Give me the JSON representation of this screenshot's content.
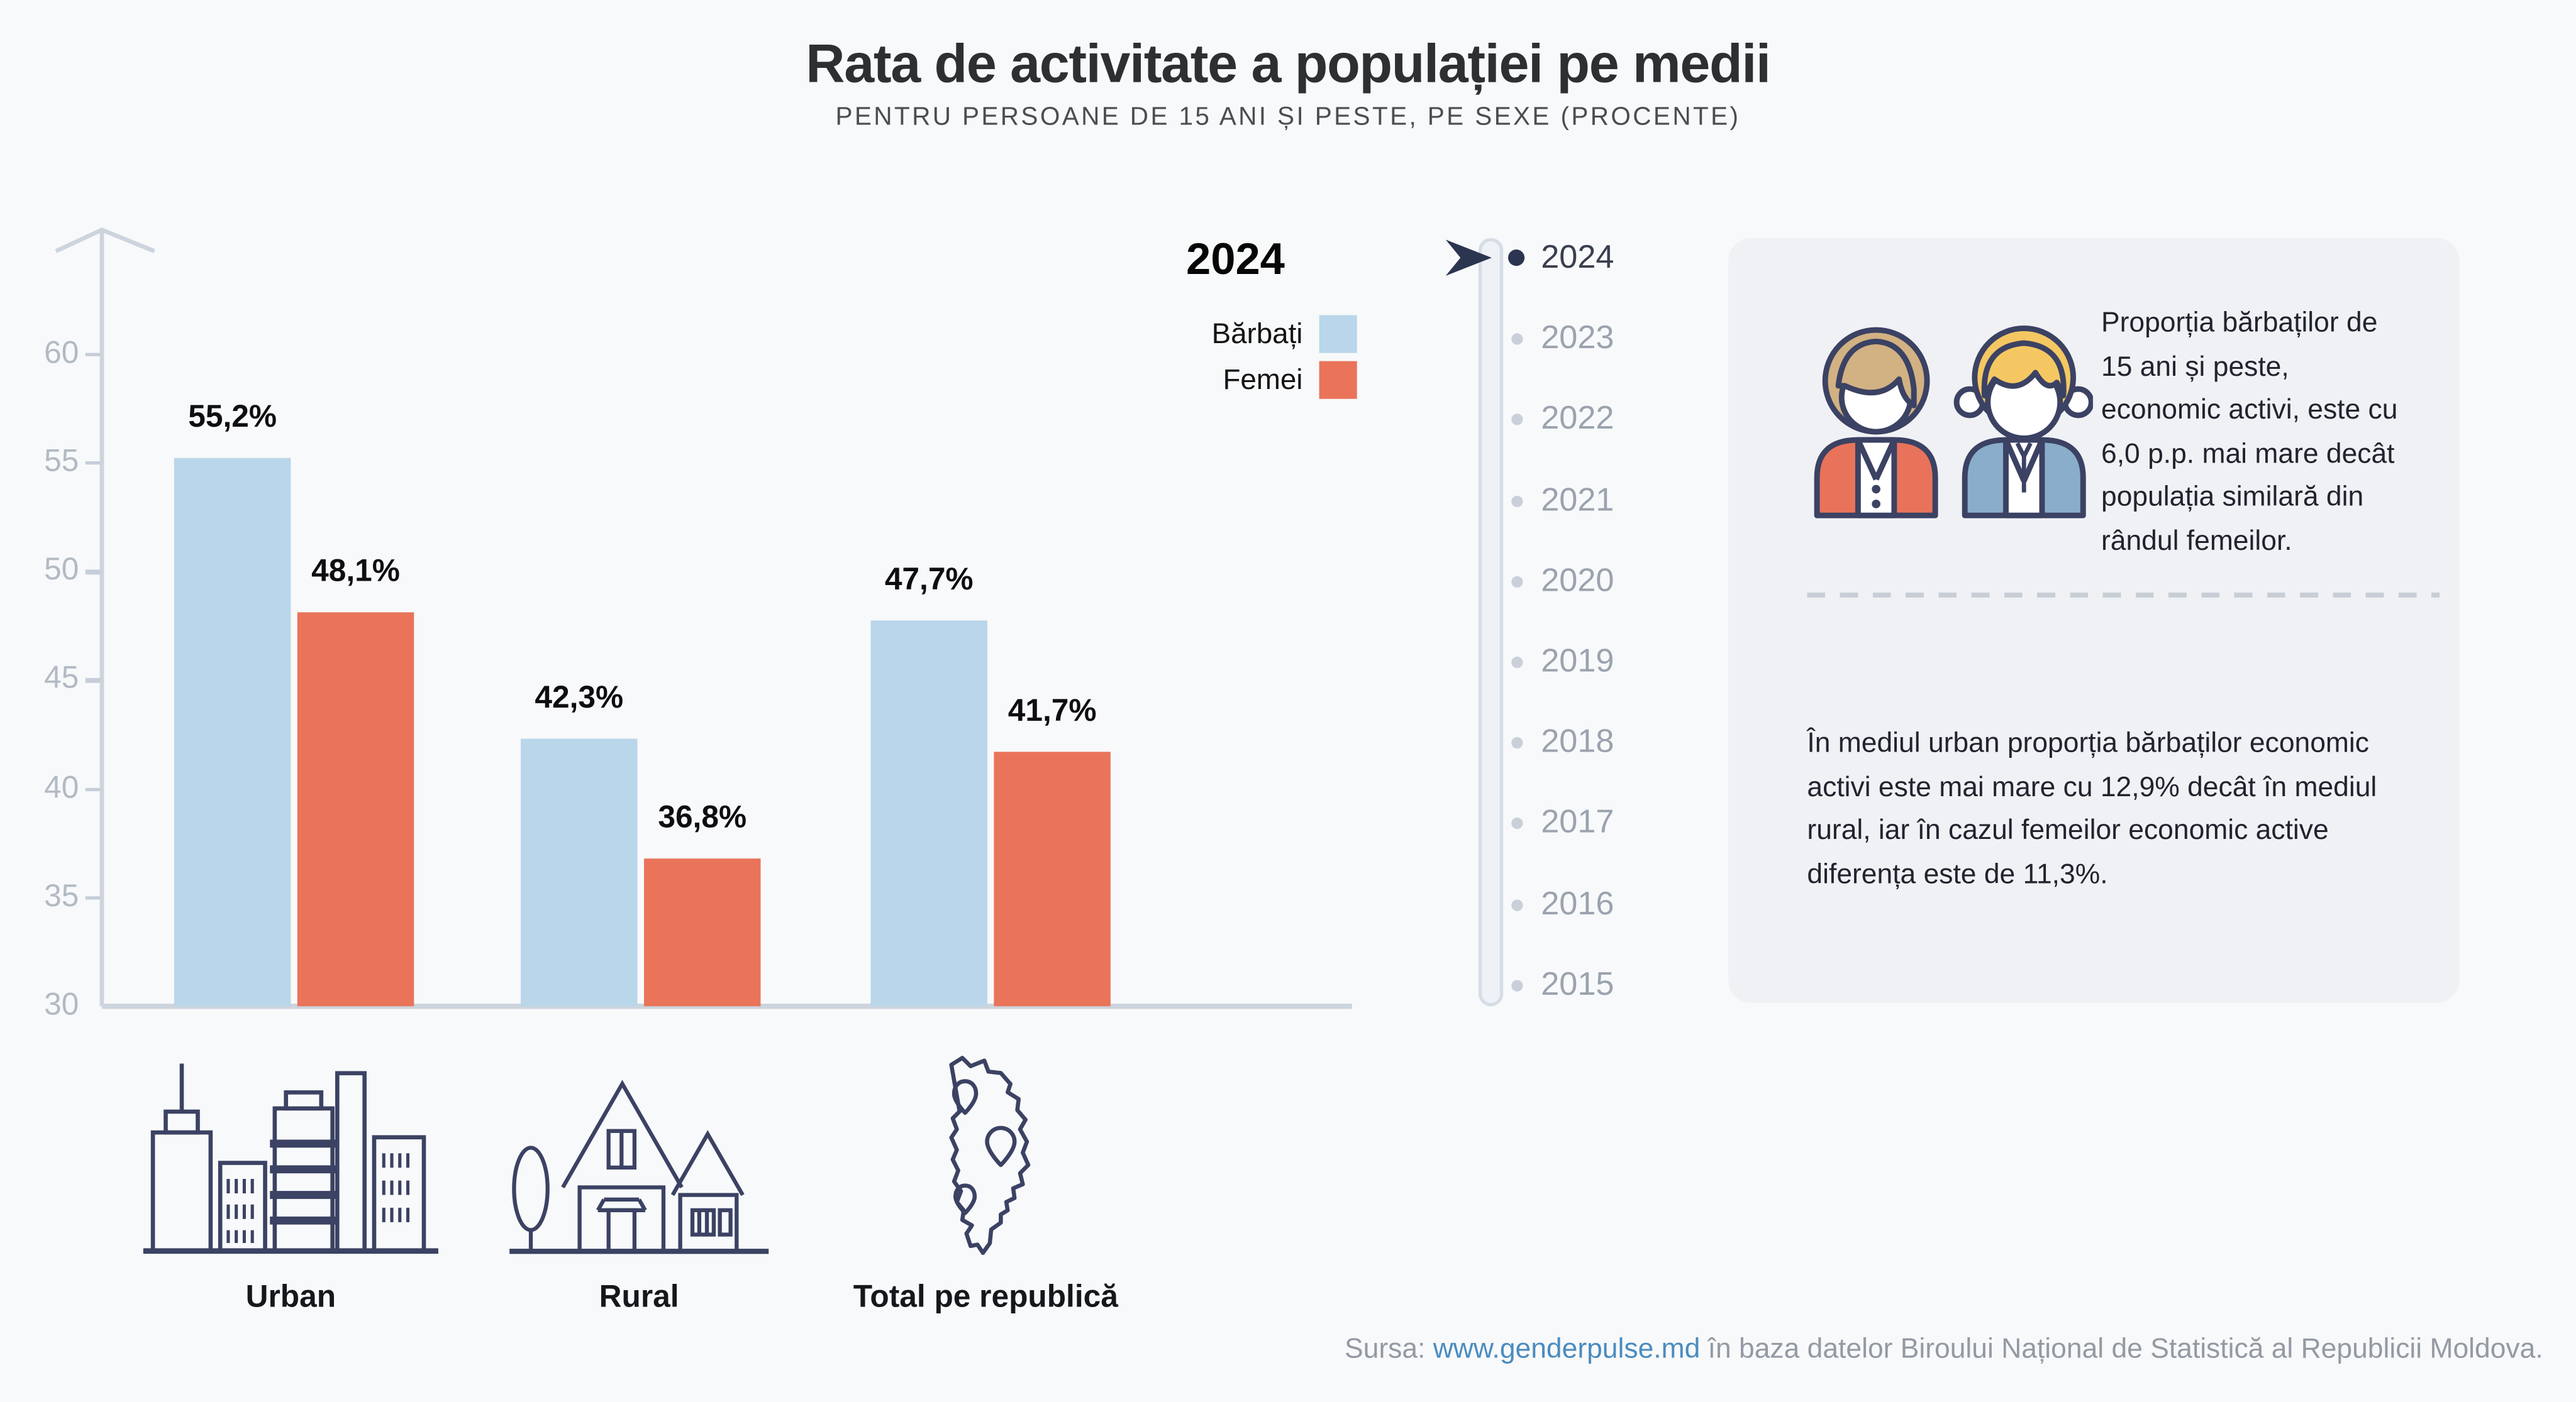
{
  "header": {
    "title": "Rata de activitate a populației pe medii",
    "subtitle": "PENTRU PERSOANE DE 15 ANI ȘI PESTE, PE SEXE (PROCENTE)"
  },
  "legend": {
    "year": "2024",
    "items": [
      {
        "label": "Bărbați",
        "color": "#b9d6ea"
      },
      {
        "label": "Femei",
        "color": "#e9745a"
      }
    ]
  },
  "chart_data": {
    "type": "bar",
    "title": "Rata de activitate a populației pe medii",
    "subtitle": "PENTRU PERSOANE DE 15 ANI ȘI PESTE, PE SEXE (PROCENTE)",
    "year": "2024",
    "categories": [
      "Urban",
      "Rural",
      "Total pe republică"
    ],
    "series": [
      {
        "name": "Bărbați",
        "color": "#b9d6ea",
        "values": [
          55.2,
          42.3,
          47.7
        ]
      },
      {
        "name": "Femei",
        "color": "#e9745a",
        "values": [
          48.1,
          36.8,
          41.7
        ]
      }
    ],
    "value_labels": [
      [
        "55,2%",
        "48,1%"
      ],
      [
        "42,3%",
        "36,8%"
      ],
      [
        "47,7%",
        "41,7%"
      ]
    ],
    "xlabel": "",
    "ylabel": "",
    "ylim": [
      30,
      62
    ],
    "yticks": [
      60,
      55,
      50,
      45,
      40,
      35,
      30
    ],
    "grid": false,
    "legend_position": "top-right"
  },
  "timeline": {
    "years": [
      "2024",
      "2023",
      "2022",
      "2021",
      "2020",
      "2019",
      "2018",
      "2017",
      "2016",
      "2015"
    ],
    "active": "2024"
  },
  "infocard": {
    "p1": "Proporția bărbaților de 15 ani și peste, economic activi, este cu 6,0 p.p. mai mare decât populația similară din rândul femeilor.",
    "p2": "În mediul urban proporția bărbaților economic activi este mai mare cu 12,9% decât în mediul rural, iar în cazul femeilor economic active diferența este de 11,3%."
  },
  "footer": {
    "source_prefix": "Sursa: ",
    "source_link": "www.genderpulse.md",
    "source_suffix": " în baza datelor Biroului Național de Statistică al Republicii Moldova."
  },
  "colors": {
    "bar_male": "#b9d6ea",
    "bar_female": "#e9745a",
    "axis": "#ccd4de",
    "tick_text": "#b2bac4",
    "year_inactive": "#9aa3ae",
    "year_active": "#383f4e",
    "outline_navy": "#3b4263",
    "cursor_navy": "#2b3550",
    "card_bg": "#f0f1f4",
    "page_bg": "#f8f9fa",
    "link": "#4a8cc0",
    "footer_text": "#939aa3"
  }
}
